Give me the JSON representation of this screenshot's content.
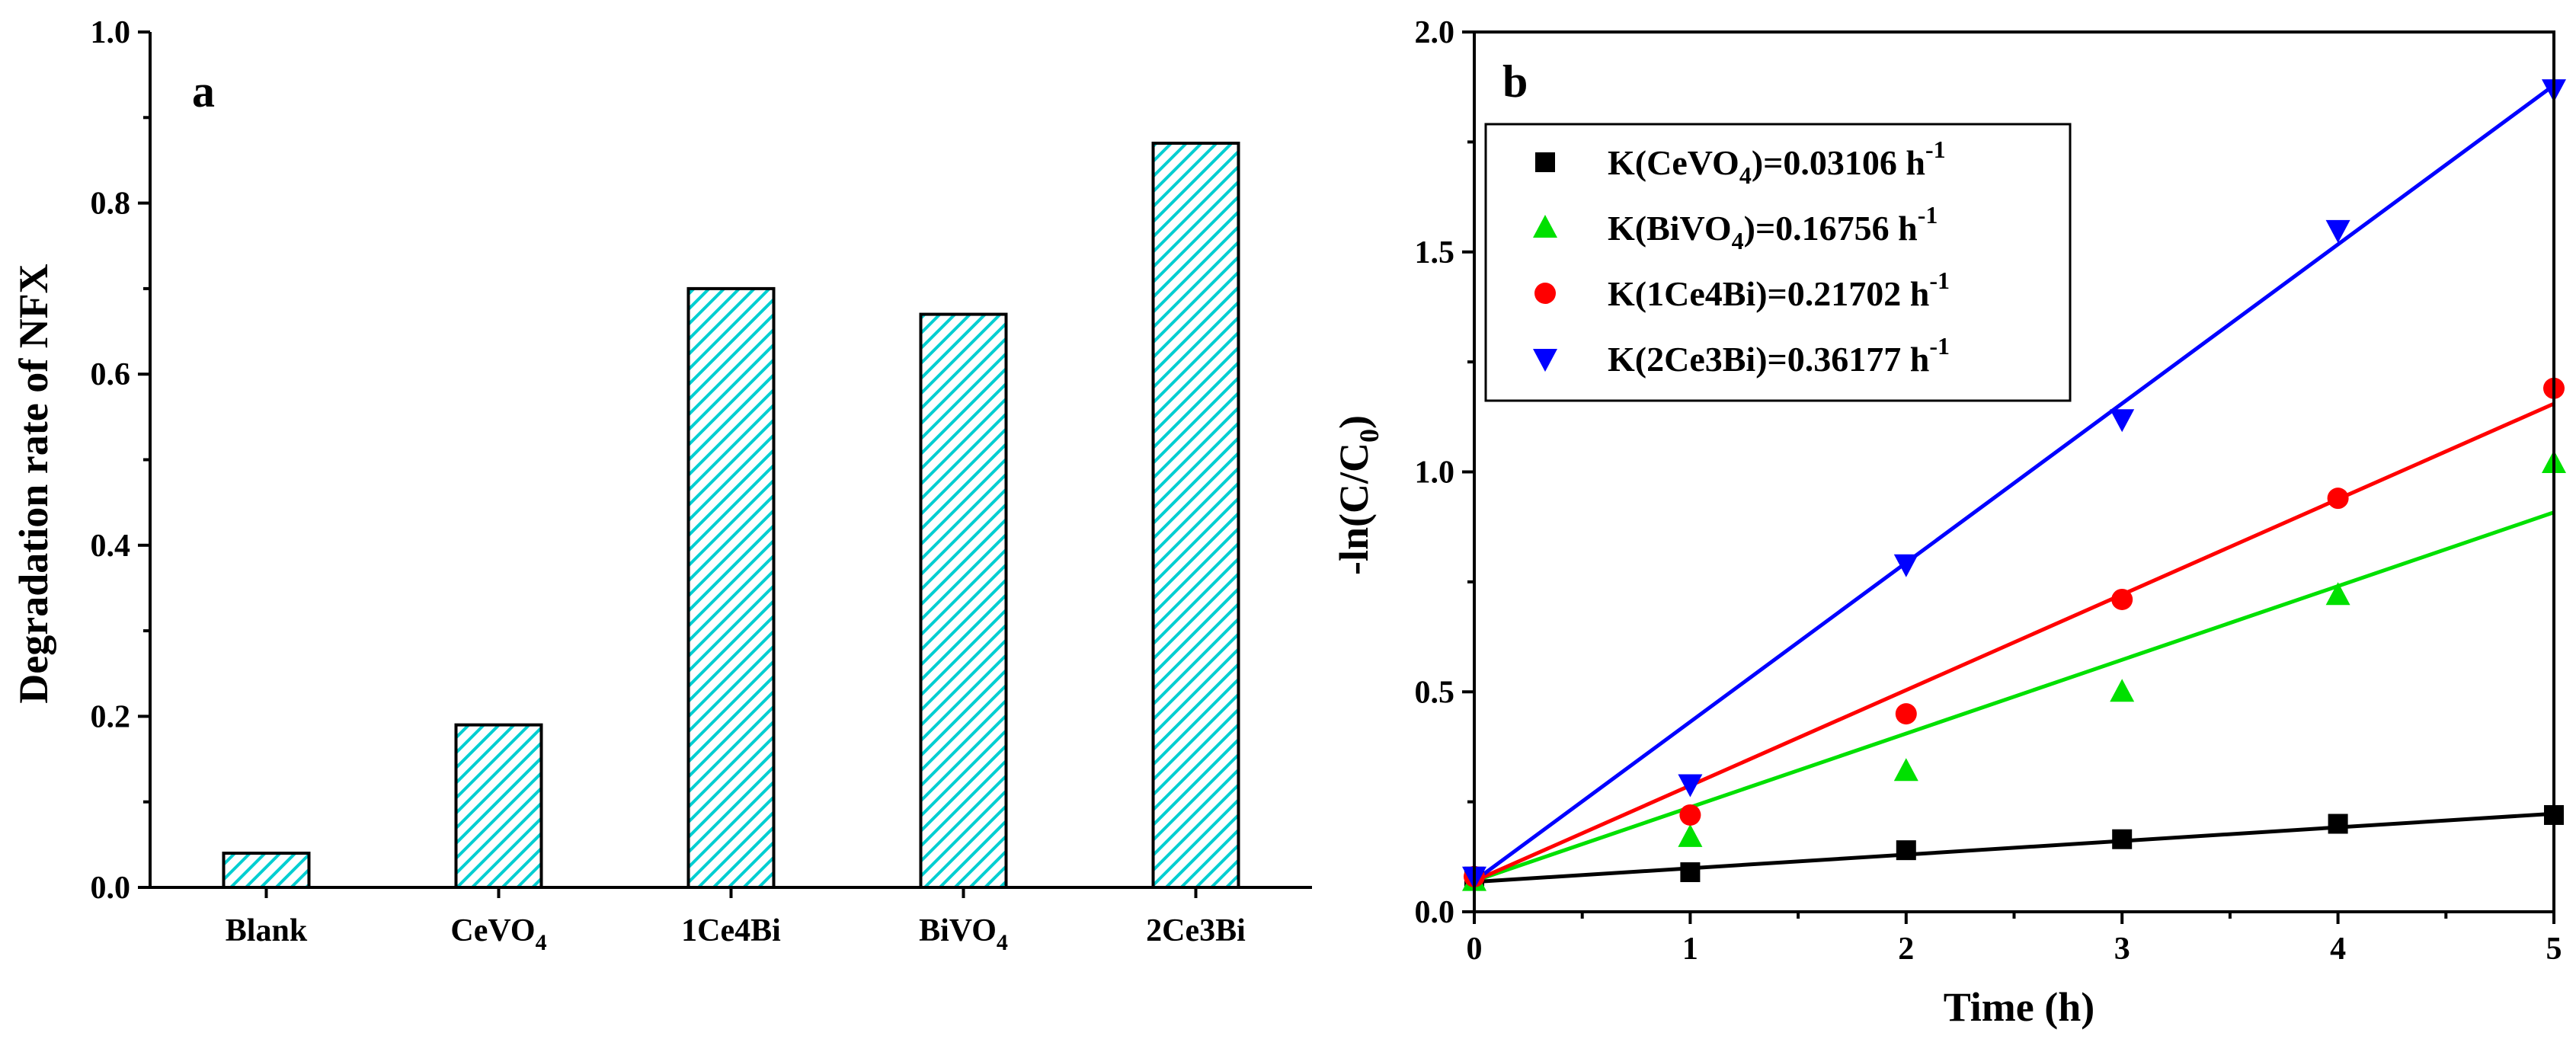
{
  "chart_data": [
    {
      "type": "bar",
      "panel_label": "a",
      "categories": [
        {
          "label": "Blank",
          "sub": ""
        },
        {
          "label": "CeVO",
          "sub": "4"
        },
        {
          "label": "1Ce4Bi",
          "sub": ""
        },
        {
          "label": "BiVO",
          "sub": "4"
        },
        {
          "label": "2Ce3Bi",
          "sub": ""
        }
      ],
      "values": [
        0.04,
        0.19,
        0.7,
        0.67,
        0.87
      ],
      "xlabel": "",
      "ylabel": "Degradation rate of NFX",
      "ylim": [
        0,
        1.0
      ],
      "yticks": [
        "0.0",
        "0.2",
        "0.4",
        "0.6",
        "0.8",
        "1.0"
      ],
      "bar_fill": "#00CED1",
      "bar_pattern": "diagonal-hatch"
    },
    {
      "type": "scatter",
      "panel_label": "b",
      "xlabel": "Time (h)",
      "ylabel": {
        "main": "-ln(C/C",
        "sub": "0",
        "close": ")"
      },
      "xlim": [
        0,
        5
      ],
      "ylim": [
        0,
        2.0
      ],
      "xticks": [
        "0",
        "1",
        "2",
        "3",
        "4",
        "5"
      ],
      "yticks": [
        "0.0",
        "0.5",
        "1.0",
        "1.5",
        "2.0"
      ],
      "x": [
        0,
        1,
        2,
        3,
        4,
        5
      ],
      "series": [
        {
          "name": "CeVO4",
          "legend": {
            "pre": "K(CeVO",
            "sub": "4",
            "mid": ")=0.03106 h",
            "sup": "-1"
          },
          "marker": "square",
          "color": "#000000",
          "values": [
            0.08,
            0.09,
            0.14,
            0.165,
            0.2,
            0.22
          ],
          "fit": [
            0.068,
            0.223
          ]
        },
        {
          "name": "BiVO4",
          "legend": {
            "pre": "K(BiVO",
            "sub": "4",
            "mid": ")=0.16756 h",
            "sup": "-1"
          },
          "marker": "triangle-up",
          "color": "#00E000",
          "values": [
            0.07,
            0.17,
            0.32,
            0.5,
            0.72,
            1.02
          ],
          "fit": [
            0.07,
            0.908
          ]
        },
        {
          "name": "1Ce4Bi",
          "legend": {
            "pre": "K(1Ce4Bi)=0.21702 h",
            "sub": "",
            "mid": "",
            "sup": "-1"
          },
          "marker": "circle",
          "color": "#FF0000",
          "values": [
            0.08,
            0.22,
            0.45,
            0.71,
            0.94,
            1.19
          ],
          "fit": [
            0.07,
            1.155
          ]
        },
        {
          "name": "2Ce3Bi",
          "legend": {
            "pre": "K(2Ce3Bi)=0.36177 h",
            "sub": "",
            "mid": "",
            "sup": "-1"
          },
          "marker": "triangle-down",
          "color": "#0000FF",
          "values": [
            0.08,
            0.29,
            0.79,
            1.12,
            1.55,
            1.87
          ],
          "fit": [
            0.07,
            1.879
          ]
        }
      ]
    }
  ]
}
